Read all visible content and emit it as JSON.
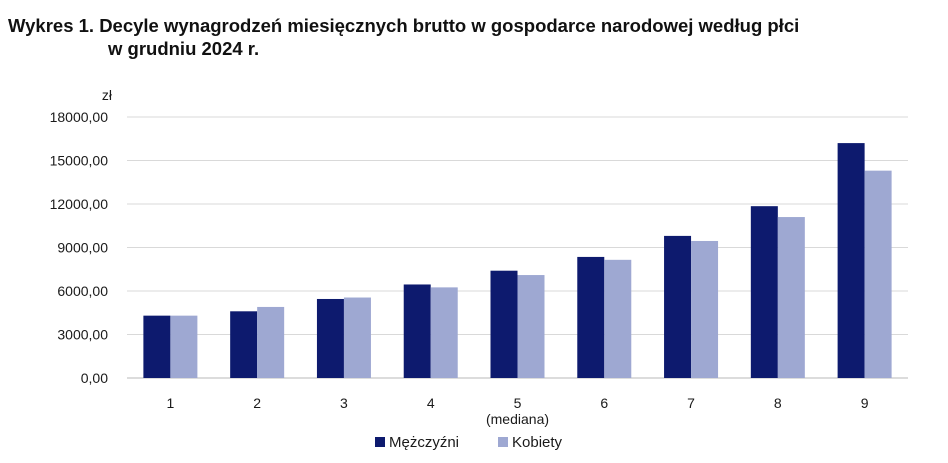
{
  "title_line1": "Wykres 1. Decyle wynagrodzeń miesięcznych brutto w gospodarce narodowej według płci",
  "title_line2": "w grudniu 2024 r.",
  "chart_data": {
    "type": "bar",
    "title": "Wykres 1. Decyle wynagrodzeń miesięcznych brutto w gospodarce narodowej według płci w grudniu 2024 r.",
    "ylabel": "zł",
    "xlabel": "",
    "ylim": [
      0,
      18000
    ],
    "yticks": [
      "0,00",
      "3000,00",
      "6000,00",
      "9000,00",
      "12000,00",
      "15000,00",
      "18000,00"
    ],
    "grid": true,
    "legend_position": "bottom",
    "categories": [
      "1",
      "2",
      "3",
      "4",
      "5",
      "6",
      "7",
      "8",
      "9"
    ],
    "category_sublabels": [
      "",
      "",
      "",
      "",
      "(mediana)",
      "",
      "",
      "",
      ""
    ],
    "series": [
      {
        "name": "Mężczyźni",
        "color": "#0d1a6e",
        "values": [
          4300,
          4600,
          5450,
          6450,
          7400,
          8350,
          9800,
          11850,
          16200
        ]
      },
      {
        "name": "Kobiety",
        "color": "#9ea8d2",
        "values": [
          4300,
          4900,
          5550,
          6250,
          7100,
          8150,
          9450,
          11100,
          14300
        ]
      }
    ]
  }
}
